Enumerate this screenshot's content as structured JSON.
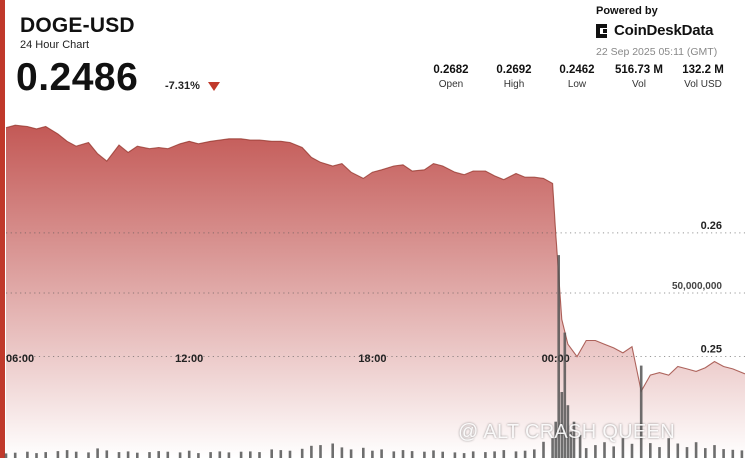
{
  "header": {
    "symbol": "DOGE-USD",
    "subtitle": "24 Hour Chart",
    "price": "0.2486",
    "change": "-7.31%"
  },
  "brand": {
    "powered_by": "Powered by",
    "name": "CoinDeskData",
    "timestamp": "22 Sep 2025 05:11 (GMT)"
  },
  "stats": [
    {
      "value": "0.2682",
      "label": "Open"
    },
    {
      "value": "0.2692",
      "label": "High"
    },
    {
      "value": "0.2462",
      "label": "Low"
    },
    {
      "value": "516.73 M",
      "label": "Vol"
    },
    {
      "value": "132.2 M",
      "label": "Vol USD"
    }
  ],
  "watermark": "@ ALT CRASH QUEEN",
  "colors": {
    "accent": "#c0392b",
    "area_top": "#c0504d",
    "area_bottom": "#ffffff",
    "volume": "#555555"
  },
  "chart_data": {
    "type": "area",
    "x_tick_labels": [
      "06:00",
      "12:00",
      "18:00",
      "00:00"
    ],
    "x_tick_hours": [
      6,
      12,
      18,
      24
    ],
    "x_range_hours": [
      6.0,
      30.2
    ],
    "y_tick_labels": [
      "0.26",
      "0.25"
    ],
    "y_ticks": [
      0.26,
      0.25
    ],
    "ylim": [
      0.2418,
      0.2709
    ],
    "volume_tick_label": "50,000,000",
    "volume_tick": 50000000,
    "volume_max": 60000000,
    "grid": "dotted-horizontal",
    "price_series": {
      "t": [
        6.0,
        6.3,
        6.7,
        7.0,
        7.3,
        7.7,
        8.0,
        8.3,
        8.7,
        9.0,
        9.3,
        9.7,
        10.0,
        10.3,
        10.7,
        11.0,
        11.3,
        11.7,
        12.0,
        12.3,
        12.7,
        13.0,
        13.3,
        13.7,
        14.0,
        14.3,
        14.7,
        15.0,
        15.3,
        15.7,
        16.0,
        16.3,
        16.7,
        17.0,
        17.3,
        17.7,
        18.0,
        18.3,
        18.7,
        19.0,
        19.3,
        19.7,
        20.0,
        20.3,
        20.7,
        21.0,
        21.3,
        21.7,
        22.0,
        22.3,
        22.7,
        23.0,
        23.3,
        23.6,
        23.9,
        24.0,
        24.2,
        24.4,
        24.7,
        25.0,
        25.3,
        25.6,
        25.9,
        26.2,
        26.5,
        26.8,
        27.1,
        27.4,
        27.7,
        28.0,
        28.3,
        28.6,
        28.9,
        29.2,
        29.5,
        29.8,
        30.2
      ],
      "y": [
        0.2685,
        0.2687,
        0.2686,
        0.2684,
        0.2686,
        0.268,
        0.2674,
        0.267,
        0.2673,
        0.2664,
        0.2658,
        0.2671,
        0.2665,
        0.267,
        0.2668,
        0.2669,
        0.2668,
        0.2672,
        0.2674,
        0.2672,
        0.2674,
        0.2675,
        0.2676,
        0.2676,
        0.2675,
        0.2675,
        0.2674,
        0.2674,
        0.2673,
        0.2669,
        0.2661,
        0.2657,
        0.2654,
        0.2656,
        0.2649,
        0.2644,
        0.2649,
        0.2651,
        0.2654,
        0.2655,
        0.265,
        0.2651,
        0.2656,
        0.2654,
        0.2649,
        0.2647,
        0.265,
        0.265,
        0.2646,
        0.2643,
        0.2648,
        0.2645,
        0.2645,
        0.2644,
        0.264,
        0.26,
        0.253,
        0.251,
        0.25,
        0.2513,
        0.2513,
        0.251,
        0.2507,
        0.2503,
        0.2508,
        0.2472,
        0.2485,
        0.2487,
        0.2485,
        0.2492,
        0.249,
        0.2488,
        0.2491,
        0.2496,
        0.2492,
        0.249,
        0.2486
      ]
    },
    "volume_series": {
      "t": [
        6.0,
        6.3,
        6.7,
        7.0,
        7.3,
        7.7,
        8.0,
        8.3,
        8.7,
        9.0,
        9.3,
        9.7,
        10.0,
        10.3,
        10.7,
        11.0,
        11.3,
        11.7,
        12.0,
        12.3,
        12.7,
        13.0,
        13.3,
        13.7,
        14.0,
        14.3,
        14.7,
        15.0,
        15.3,
        15.7,
        16.0,
        16.3,
        16.7,
        17.0,
        17.3,
        17.7,
        18.0,
        18.3,
        18.7,
        19.0,
        19.3,
        19.7,
        20.0,
        20.3,
        20.7,
        21.0,
        21.3,
        21.7,
        22.0,
        22.3,
        22.7,
        23.0,
        23.3,
        23.6,
        23.9,
        24.0,
        24.1,
        24.2,
        24.3,
        24.4,
        24.5,
        24.6,
        24.8,
        25.0,
        25.3,
        25.6,
        25.9,
        26.2,
        26.5,
        26.8,
        27.1,
        27.4,
        27.7,
        28.0,
        28.3,
        28.6,
        28.9,
        29.2,
        29.5,
        29.8,
        30.1
      ],
      "v": [
        1400000,
        1600000,
        1900000,
        1500000,
        1800000,
        2100000,
        2400000,
        1900000,
        1700000,
        2900000,
        2300000,
        1800000,
        2000000,
        1600000,
        1800000,
        2100000,
        1900000,
        1700000,
        2200000,
        1500000,
        1800000,
        2000000,
        1700000,
        1900000,
        2000000,
        1800000,
        2600000,
        2400000,
        2200000,
        2800000,
        3700000,
        3900000,
        4400000,
        3200000,
        2600000,
        3100000,
        2200000,
        2600000,
        2000000,
        2400000,
        2100000,
        1900000,
        2300000,
        1900000,
        1700000,
        1500000,
        2000000,
        1800000,
        2000000,
        2400000,
        2000000,
        2200000,
        2600000,
        4900000,
        6000000,
        11000000,
        61500000,
        20000000,
        38000000,
        16000000,
        8000000,
        11000000,
        7000000,
        3000000,
        3900000,
        4800000,
        3500000,
        6000000,
        4300000,
        28000000,
        4500000,
        3300000,
        6000000,
        4400000,
        3300000,
        4800000,
        3000000,
        3900000,
        2700000,
        2500000,
        2300000
      ]
    }
  }
}
